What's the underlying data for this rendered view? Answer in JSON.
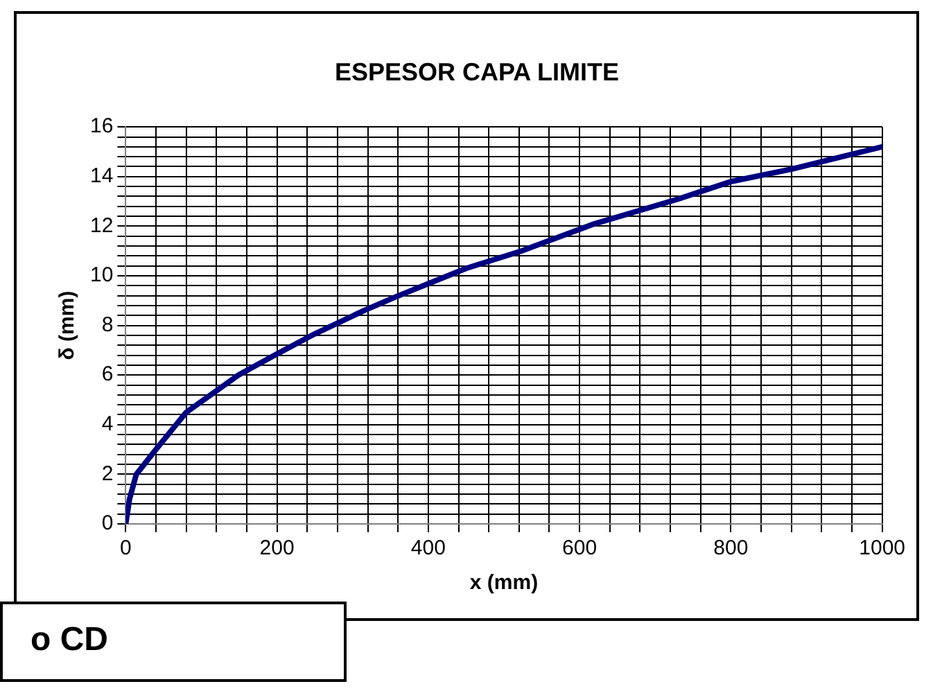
{
  "chart_data": {
    "type": "line",
    "title": "ESPESOR CAPA LIMITE",
    "xlabel": "x (mm)",
    "ylabel": "δ (mm)",
    "x": [
      0,
      5,
      14,
      40,
      80,
      149,
      197,
      246,
      315,
      357,
      450,
      523,
      620,
      731,
      800,
      880,
      1000
    ],
    "series": [
      {
        "color": "#000080",
        "values": [
          0,
          1.0,
          2.0,
          3.0,
          4.5,
          6.0,
          6.8,
          7.6,
          8.6,
          9.15,
          10.3,
          11.0,
          12.1,
          13.1,
          13.8,
          14.3,
          15.2
        ]
      }
    ],
    "xlim": [
      0,
      1000
    ],
    "xticks": [
      0,
      {
        "value": 40,
        "label": null
      },
      {
        "value": 80,
        "label": null
      },
      {
        "value": 120,
        "label": null
      },
      {
        "value": 160,
        "label": null
      },
      200,
      {
        "value": 240,
        "label": null
      },
      {
        "value": 280,
        "label": null
      },
      {
        "value": 320,
        "label": null
      },
      {
        "value": 360,
        "label": null
      },
      400,
      {
        "value": 440,
        "label": null
      },
      {
        "value": 480,
        "label": null
      },
      {
        "value": 520,
        "label": null
      },
      {
        "value": 560,
        "label": null
      },
      600,
      {
        "value": 640,
        "label": null
      },
      {
        "value": 680,
        "label": null
      },
      {
        "value": 720,
        "label": null
      },
      {
        "value": 760,
        "label": null
      },
      800,
      {
        "value": 840,
        "label": null
      },
      {
        "value": 880,
        "label": null
      },
      {
        "value": 920,
        "label": null
      },
      {
        "value": 960,
        "label": null
      },
      1000
    ],
    "ylim": [
      0,
      16
    ],
    "yticks": [
      0,
      {
        "value": 0.4,
        "label": null
      },
      {
        "value": 0.8,
        "label": null
      },
      {
        "value": 1.2,
        "label": null
      },
      {
        "value": 1.6,
        "label": null
      },
      2,
      {
        "value": 2.4,
        "label": null
      },
      {
        "value": 2.8,
        "label": null
      },
      {
        "value": 3.2,
        "label": null
      },
      {
        "value": 3.6,
        "label": null
      },
      4,
      {
        "value": 4.4,
        "label": null
      },
      {
        "value": 4.8,
        "label": null
      },
      {
        "value": 5.2,
        "label": null
      },
      {
        "value": 5.6,
        "label": null
      },
      6,
      {
        "value": 6.4,
        "label": null
      },
      {
        "value": 6.8,
        "label": null
      },
      {
        "value": 7.2,
        "label": null
      },
      {
        "value": 7.6,
        "label": null
      },
      8,
      {
        "value": 8.4,
        "label": null
      },
      {
        "value": 8.8,
        "label": null
      },
      {
        "value": 9.2,
        "label": null
      },
      {
        "value": 9.6,
        "label": null
      },
      10,
      {
        "value": 10.4,
        "label": null
      },
      {
        "value": 10.8,
        "label": null
      },
      {
        "value": 11.2,
        "label": null
      },
      {
        "value": 11.6,
        "label": null
      },
      12,
      {
        "value": 12.4,
        "label": null
      },
      {
        "value": 12.8,
        "label": null
      },
      {
        "value": 13.2,
        "label": null
      },
      {
        "value": 13.6,
        "label": null
      },
      14,
      {
        "value": 14.4,
        "label": null
      },
      {
        "value": 14.8,
        "label": null
      },
      {
        "value": 15.2,
        "label": null
      },
      {
        "value": 15.6,
        "label": null
      },
      16
    ],
    "grid": true,
    "marker": "none",
    "line_style": "solid",
    "annotations": [
      "o CD"
    ]
  }
}
